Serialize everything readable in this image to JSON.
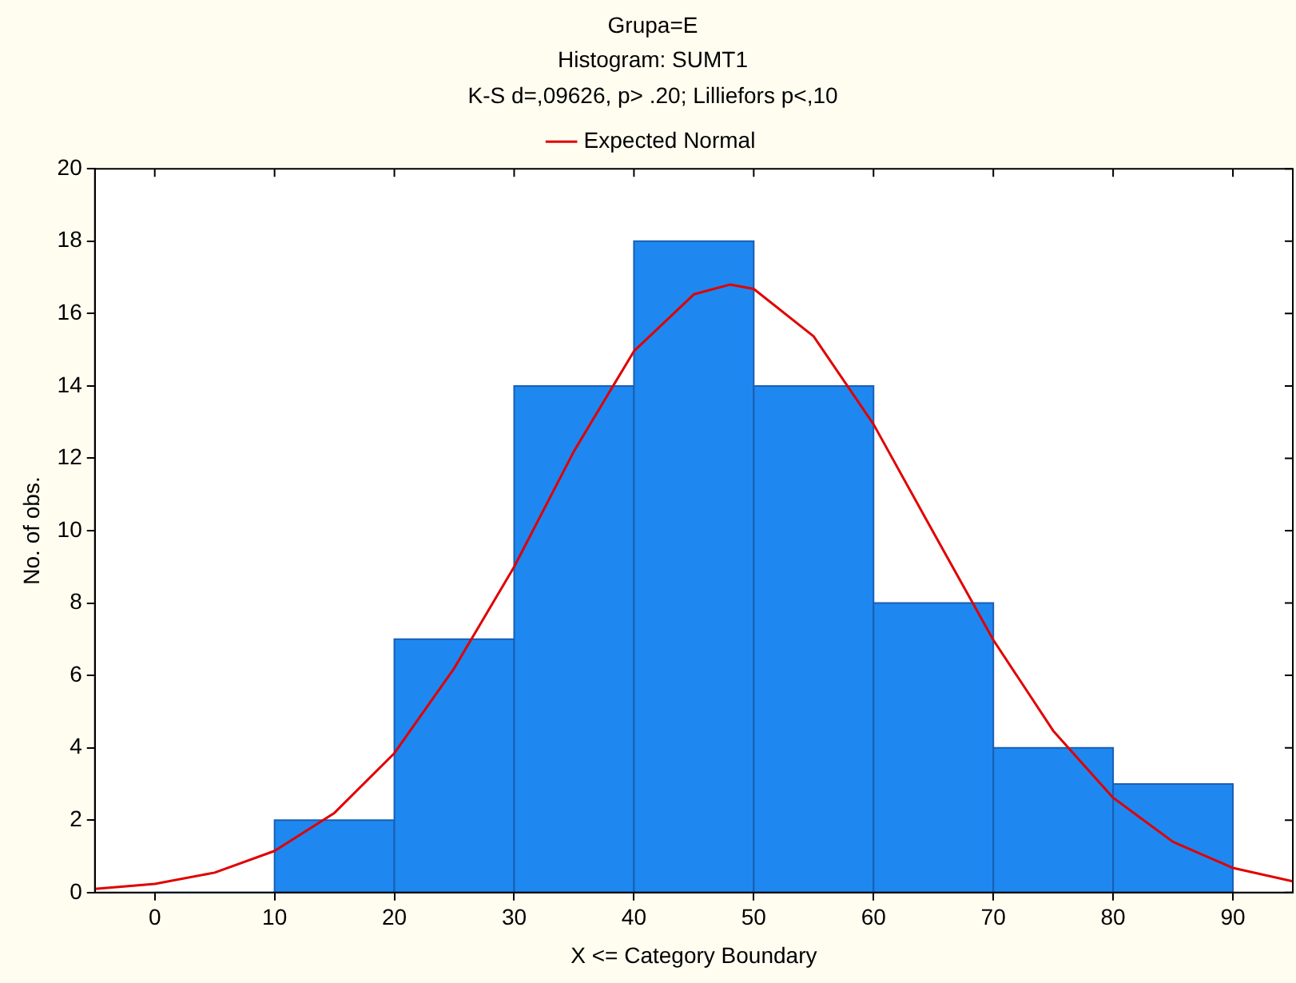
{
  "chart_data": {
    "type": "histogram",
    "title": "Grupa=E",
    "subtitle": "Histogram: SUMT1",
    "annotations": [
      "K-S d=,09626, p> .20; Lilliefors p<,10"
    ],
    "xlabel": "X <= Category Boundary",
    "ylabel": "No. of obs.",
    "bins": [
      0,
      10,
      20,
      30,
      40,
      50,
      60,
      70,
      80,
      90
    ],
    "values": [
      0,
      2,
      7,
      14,
      18,
      14,
      8,
      4,
      3
    ],
    "color": "#1e88f0",
    "series": [
      {
        "name": "Expected Normal",
        "type": "line",
        "color": "#e00000",
        "x": [
          -5,
          0,
          5,
          10,
          15,
          20,
          25,
          30,
          35,
          40,
          45,
          48,
          50,
          55,
          60,
          65,
          70,
          75,
          80,
          85,
          90,
          95
        ],
        "values": [
          0.1,
          0.24,
          0.55,
          1.15,
          2.2,
          3.85,
          6.2,
          9.0,
          12.2,
          14.96,
          16.53,
          16.8,
          16.68,
          15.37,
          12.94,
          9.95,
          6.98,
          4.47,
          2.62,
          1.4,
          0.68,
          0.31
        ]
      }
    ],
    "xlim": [
      -5,
      95
    ],
    "xticks": [
      0,
      10,
      20,
      30,
      40,
      50,
      60,
      70,
      80,
      90
    ],
    "ylim": [
      0,
      20
    ],
    "yticks": [
      0,
      2,
      4,
      6,
      8,
      10,
      12,
      14,
      16,
      18,
      20
    ],
    "grid": false,
    "legend": "top",
    "marker": "none",
    "line_style": "solid"
  }
}
